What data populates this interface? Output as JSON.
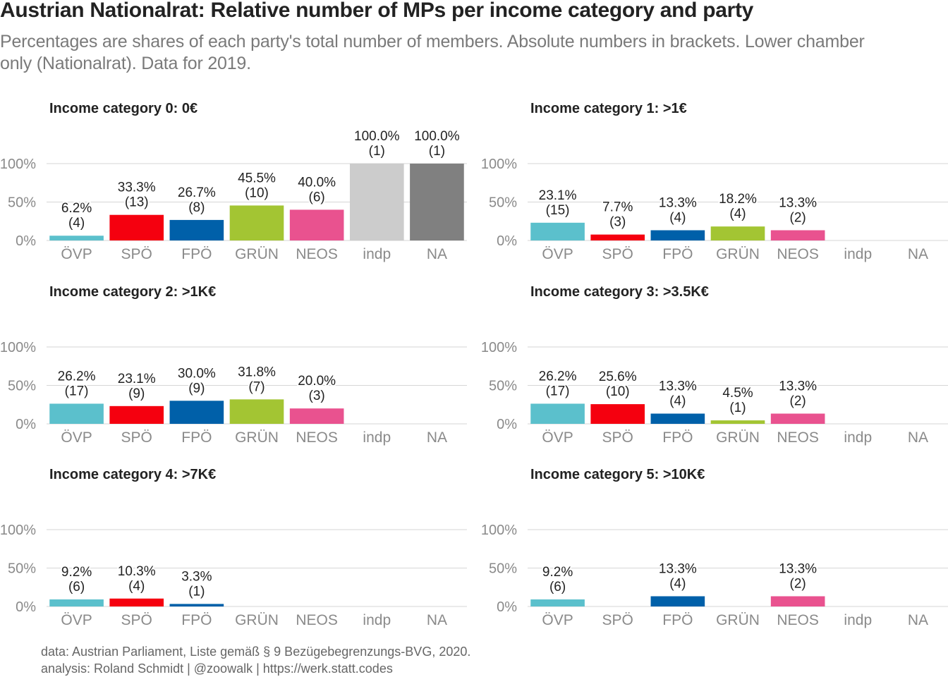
{
  "title": "Austrian Nationalrat: Relative number of MPs per income category and party",
  "subtitle": "Percentages are shares of each party's total number of members. Absolute numbers in brackets. Lower chamber only (Nationalrat). Data for 2019.",
  "caption": {
    "line1": "data: Austrian Parliament, Liste gemäß § 9 Bezügebegrenzungs-BVG, 2020.",
    "line2": "analysis: Roland Schmidt | @zoowalk | https://werk.statt.codes"
  },
  "chart_data": {
    "type": "bar",
    "categories": [
      "ÖVP",
      "SPÖ",
      "FPÖ",
      "GRÜN",
      "NEOS",
      "indp",
      "NA"
    ],
    "colors": {
      "ÖVP": "#5bc0cc",
      "SPÖ": "#f5000f",
      "FPÖ": "#0060a9",
      "GRÜN": "#a3c533",
      "NEOS": "#e9528f",
      "indp": "#cccccc",
      "NA": "#808080"
    },
    "yticks": [
      "0%",
      "50%",
      "100%"
    ],
    "ylim": [
      0,
      100
    ],
    "facets": [
      {
        "title": "Income category 0: 0€",
        "bars": [
          {
            "party": "ÖVP",
            "value": 6.2,
            "label": "6.2%",
            "count": "(4)"
          },
          {
            "party": "SPÖ",
            "value": 33.3,
            "label": "33.3%",
            "count": "(13)"
          },
          {
            "party": "FPÖ",
            "value": 26.7,
            "label": "26.7%",
            "count": "(8)"
          },
          {
            "party": "GRÜN",
            "value": 45.5,
            "label": "45.5%",
            "count": "(10)"
          },
          {
            "party": "NEOS",
            "value": 40.0,
            "label": "40.0%",
            "count": "(6)"
          },
          {
            "party": "indp",
            "value": 100.0,
            "label": "100.0%",
            "count": "(1)"
          },
          {
            "party": "NA",
            "value": 100.0,
            "label": "100.0%",
            "count": "(1)"
          }
        ]
      },
      {
        "title": "Income category 1: >1€",
        "bars": [
          {
            "party": "ÖVP",
            "value": 23.1,
            "label": "23.1%",
            "count": "(15)"
          },
          {
            "party": "SPÖ",
            "value": 7.7,
            "label": "7.7%",
            "count": "(3)"
          },
          {
            "party": "FPÖ",
            "value": 13.3,
            "label": "13.3%",
            "count": "(4)"
          },
          {
            "party": "GRÜN",
            "value": 18.2,
            "label": "18.2%",
            "count": "(4)"
          },
          {
            "party": "NEOS",
            "value": 13.3,
            "label": "13.3%",
            "count": "(2)"
          }
        ]
      },
      {
        "title": "Income category 2: >1K€",
        "bars": [
          {
            "party": "ÖVP",
            "value": 26.2,
            "label": "26.2%",
            "count": "(17)"
          },
          {
            "party": "SPÖ",
            "value": 23.1,
            "label": "23.1%",
            "count": "(9)"
          },
          {
            "party": "FPÖ",
            "value": 30.0,
            "label": "30.0%",
            "count": "(9)"
          },
          {
            "party": "GRÜN",
            "value": 31.8,
            "label": "31.8%",
            "count": "(7)"
          },
          {
            "party": "NEOS",
            "value": 20.0,
            "label": "20.0%",
            "count": "(3)"
          }
        ]
      },
      {
        "title": "Income category 3: >3.5K€",
        "bars": [
          {
            "party": "ÖVP",
            "value": 26.2,
            "label": "26.2%",
            "count": "(17)"
          },
          {
            "party": "SPÖ",
            "value": 25.6,
            "label": "25.6%",
            "count": "(10)"
          },
          {
            "party": "FPÖ",
            "value": 13.3,
            "label": "13.3%",
            "count": "(4)"
          },
          {
            "party": "GRÜN",
            "value": 4.5,
            "label": "4.5%",
            "count": "(1)"
          },
          {
            "party": "NEOS",
            "value": 13.3,
            "label": "13.3%",
            "count": "(2)"
          }
        ]
      },
      {
        "title": "Income category 4: >7K€",
        "bars": [
          {
            "party": "ÖVP",
            "value": 9.2,
            "label": "9.2%",
            "count": "(6)"
          },
          {
            "party": "SPÖ",
            "value": 10.3,
            "label": "10.3%",
            "count": "(4)"
          },
          {
            "party": "FPÖ",
            "value": 3.3,
            "label": "3.3%",
            "count": "(1)"
          }
        ]
      },
      {
        "title": "Income category 5: >10K€",
        "bars": [
          {
            "party": "ÖVP",
            "value": 9.2,
            "label": "9.2%",
            "count": "(6)"
          },
          {
            "party": "FPÖ",
            "value": 13.3,
            "label": "13.3%",
            "count": "(4)"
          },
          {
            "party": "NEOS",
            "value": 13.3,
            "label": "13.3%",
            "count": "(2)"
          }
        ]
      }
    ]
  }
}
